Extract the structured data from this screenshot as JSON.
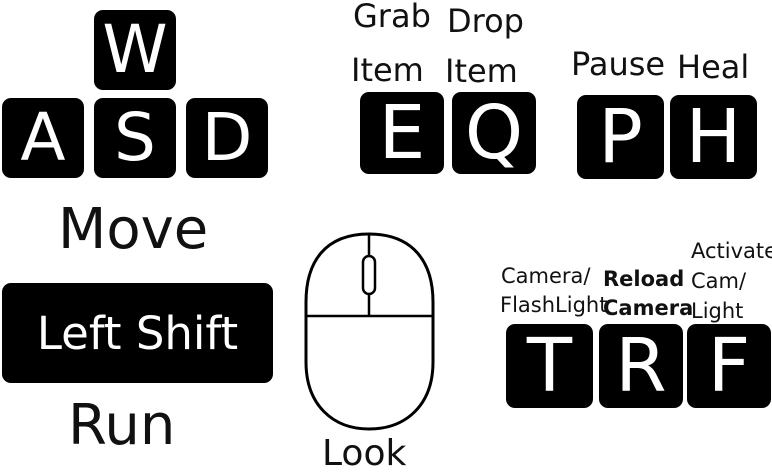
{
  "movement": {
    "keys": {
      "w": "W",
      "a": "A",
      "s": "S",
      "d": "D"
    },
    "label": "Move"
  },
  "run": {
    "key": "Left Shift",
    "label": "Run"
  },
  "look": {
    "label": "Look",
    "icon": "mouse-icon"
  },
  "grab": {
    "key": "E",
    "label_line1": "Grab",
    "label_line2": "Item"
  },
  "drop": {
    "key": "Q",
    "label_line1": "Drop",
    "label_line2": "Item"
  },
  "pause": {
    "key": "P",
    "label": "Pause"
  },
  "heal": {
    "key": "H",
    "label": "Heal"
  },
  "camera": {
    "key": "T",
    "label_line1": "Camera/",
    "label_line2": "FlashLight"
  },
  "reload": {
    "key": "R",
    "label_line1": "Reload",
    "label_line2": "Camera"
  },
  "activate": {
    "key": "F",
    "label_line1": "Activate",
    "label_line2": "Cam/",
    "label_line3": "Light"
  },
  "colors": {
    "key_bg": "#000000",
    "key_text": "#ffffff",
    "label_text": "#111111"
  }
}
